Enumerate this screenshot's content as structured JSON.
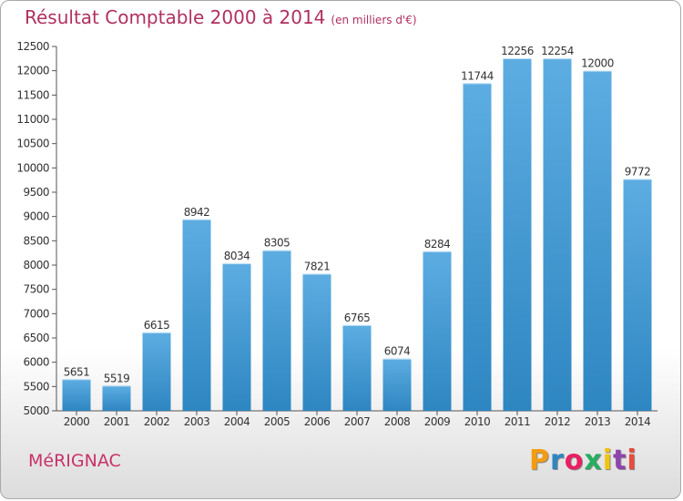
{
  "header": {
    "title": "Résultat Comptable 2000 à 2014",
    "unit": "(en milliers d'€)"
  },
  "footer": {
    "commune": "MéRIGNAC",
    "logo": {
      "letters": [
        "P",
        "r",
        "o",
        "x",
        "i",
        "t",
        "i"
      ],
      "colors": [
        "#f39c12",
        "#2e86c1",
        "#e91e63",
        "#27ae60",
        "#f1c40f",
        "#8e44ad",
        "#e74c3c"
      ]
    }
  },
  "colors": {
    "bar_light": "#5dade2",
    "bar_dark": "#2e86c1",
    "title": "#b03060"
  },
  "chart_data": {
    "type": "bar",
    "title": "Résultat Comptable 2000 à 2014",
    "subtitle": "(en milliers d'€)",
    "xlabel": "",
    "ylabel": "",
    "categories": [
      "2000",
      "2001",
      "2002",
      "2003",
      "2004",
      "2005",
      "2006",
      "2007",
      "2008",
      "2009",
      "2010",
      "2011",
      "2012",
      "2013",
      "2014"
    ],
    "values": [
      5651,
      5519,
      6615,
      8942,
      8034,
      8305,
      7821,
      6765,
      6074,
      8284,
      11744,
      12256,
      12254,
      12000,
      9772
    ],
    "value_labels": [
      "5651",
      "5519",
      "6615",
      "8942",
      "8034",
      "8305",
      "7821",
      "6765",
      "6074",
      "8284",
      "11744",
      "12256",
      "12254",
      "12000",
      "9772"
    ],
    "ylim": [
      5000,
      12500
    ],
    "yticks": [
      5000,
      5500,
      6000,
      6500,
      7000,
      7500,
      8000,
      8500,
      9000,
      9500,
      10000,
      10500,
      11000,
      11500,
      12000,
      12500
    ],
    "ytick_labels": [
      "5000",
      "5500",
      "6000",
      "6500",
      "7000",
      "7500",
      "8000",
      "8500",
      "9000",
      "9500",
      "10000",
      "10500",
      "11000",
      "11500",
      "12000",
      "12500"
    ],
    "grid": false,
    "legend": "none"
  }
}
